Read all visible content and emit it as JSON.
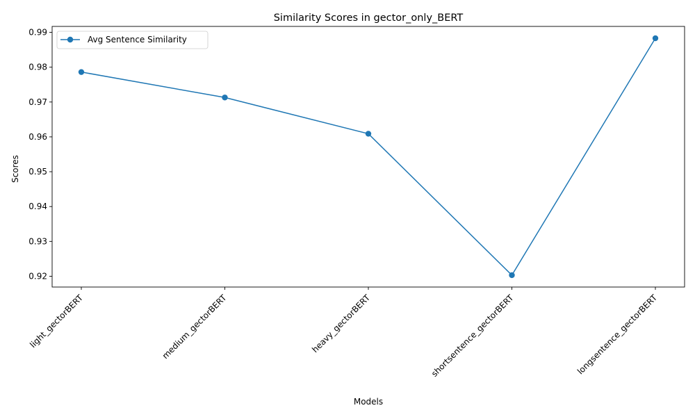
{
  "chart_data": {
    "type": "line",
    "title": "Similarity Scores in gector_only_BERT",
    "xlabel": "Models",
    "ylabel": "Scores",
    "categories": [
      "light_gectorBERT",
      "medium_gectorBERT",
      "heavy_gectorBERT",
      "shortsentence_gectorBERT",
      "longsentence_gectorBERT"
    ],
    "series": [
      {
        "name": "Avg Sentence Similarity",
        "values": [
          0.9786,
          0.9713,
          0.9609,
          0.9203,
          0.9883
        ],
        "color": "#1f77b4",
        "marker": "circle"
      }
    ],
    "yticks": [
      "0.92",
      "0.93",
      "0.94",
      "0.95",
      "0.96",
      "0.97",
      "0.98",
      "0.99"
    ],
    "ylim": [
      0.9169,
      0.9917
    ],
    "grid": false,
    "legend": "top-left",
    "xtick_rotation": -45
  }
}
